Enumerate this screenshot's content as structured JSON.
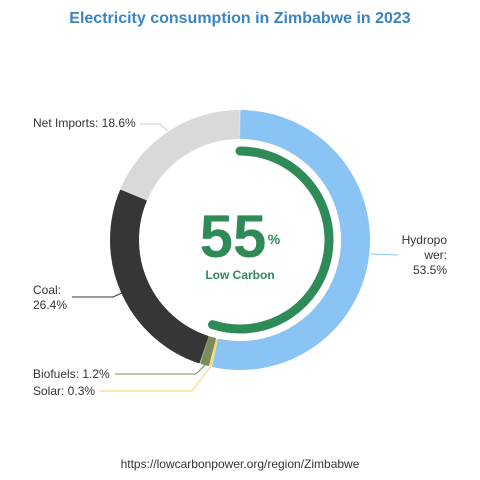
{
  "title": "Electricity consumption in Zimbabwe in 2023",
  "footer": {
    "url": "https://lowcarbonpower.org/region/Zimbabwe"
  },
  "center": {
    "value": "55",
    "unit": "%",
    "label": "Low Carbon"
  },
  "colors": {
    "title": "#3a85c0",
    "low_carbon_ring": "#2e8b57",
    "hydropower": "#89c4f4",
    "solar": "#f5d76e",
    "biofuels": "#7b8b5a",
    "coal": "#363636",
    "net_imports": "#d9d9d9"
  },
  "chart_data": {
    "type": "pie",
    "title": "Electricity consumption in Zimbabwe in 2023",
    "slices": [
      {
        "name": "Hydropower",
        "value": 53.5,
        "label": [
          "Hydropo",
          "wer:",
          "53.5%"
        ],
        "color": "#89c4f4"
      },
      {
        "name": "Solar",
        "value": 0.3,
        "label": [
          "Solar: 0.3%"
        ],
        "color": "#f5d76e"
      },
      {
        "name": "Biofuels",
        "value": 1.2,
        "label": [
          "Biofuels: 1.2%"
        ],
        "color": "#7b8b5a"
      },
      {
        "name": "Coal",
        "value": 26.4,
        "label": [
          "Coal:",
          "26.4%"
        ],
        "color": "#363636"
      },
      {
        "name": "Net Imports",
        "value": 18.6,
        "label": [
          "Net Imports: 18.6%"
        ],
        "color": "#d9d9d9"
      }
    ],
    "low_carbon_share": 55
  }
}
